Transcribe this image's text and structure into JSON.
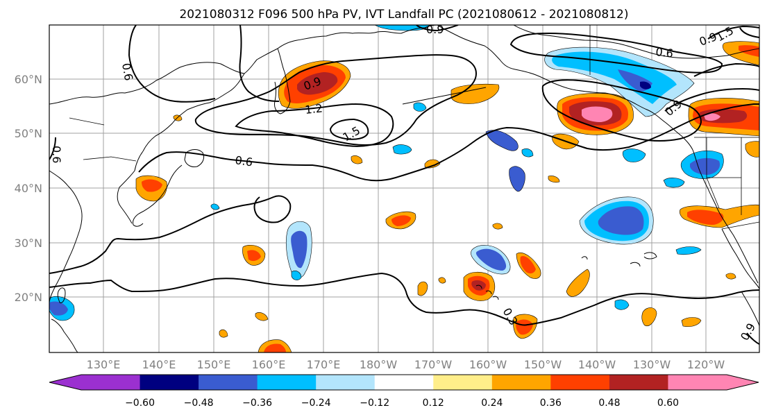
{
  "title": "2021080312 F096 500 hPa PV, IVT Landfall PC (2021080612 - 2021080812)",
  "lat_labels": [
    "60°N",
    "50°N",
    "40°N",
    "30°N",
    "20°N"
  ],
  "lon_labels": [
    "130°E",
    "140°E",
    "150°E",
    "160°E",
    "170°E",
    "180°W",
    "170°W",
    "160°W",
    "150°W",
    "140°W",
    "130°W",
    "120°W"
  ],
  "contour_labels": [
    "0.9",
    "0.9",
    "1.2",
    "1.5",
    "0.6",
    "0.6",
    "0.6",
    "0.9",
    "0.9",
    "1.5",
    "0.6",
    "0.3",
    "0.9"
  ],
  "colorbar": {
    "tick_labels": [
      "−0.60",
      "−0.48",
      "−0.36",
      "−0.24",
      "−0.12",
      "0.12",
      "0.24",
      "0.36",
      "0.48",
      "0.60"
    ],
    "colors": [
      "#9b30d0",
      "#000080",
      "#3a5cd0",
      "#00bfff",
      "#b3e5fc",
      "#ffffff",
      "#ffee8a",
      "#ffa500",
      "#ff4000",
      "#b22222",
      "#ff85b3",
      "#ff85b3"
    ]
  },
  "colors": {
    "frame": "#000000",
    "grid": "#a0a0a0",
    "coast": "#000000",
    "contour": "#000000"
  }
}
